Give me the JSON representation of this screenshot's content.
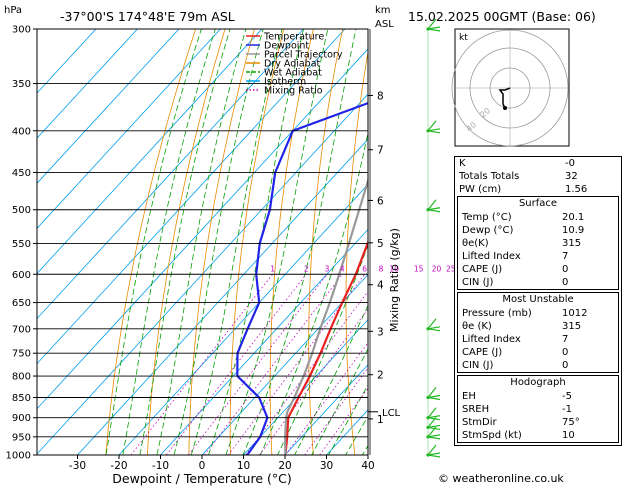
{
  "header": {
    "hpa_label": "hPa",
    "location": "-37°00'S  174°48'E  79m  ASL",
    "km_label": "km",
    "asl_label": "ASL",
    "datetime": "15.02.2025  00GMT  (Base: 06)"
  },
  "legend": {
    "items": [
      {
        "label": "Temperature",
        "color": "#e8201f"
      },
      {
        "label": "Dewpoint",
        "color": "#1f24e8"
      },
      {
        "label": "Parcel Trajectory",
        "color": "#999999"
      },
      {
        "label": "Dry Adiabat",
        "color": "#e88a00"
      },
      {
        "label": "Wet Adiabat",
        "color": "#009f00"
      },
      {
        "label": "Isotherm",
        "color": "#00a0f0"
      },
      {
        "label": "Mixing Ratio",
        "color": "#c000c0"
      }
    ]
  },
  "chart_data": {
    "type": "line",
    "title": "",
    "xlabel": "Dewpoint / Temperature (°C)",
    "ylabel": "Mixing Ratio (g/kg)",
    "x_ticks": [
      -30,
      -20,
      -10,
      0,
      10,
      20,
      30,
      40
    ],
    "p_levels": [
      300,
      350,
      400,
      450,
      500,
      550,
      600,
      650,
      700,
      750,
      800,
      850,
      900,
      950,
      1000
    ],
    "height_ticks_km": [
      {
        "label": "8",
        "p": 362
      },
      {
        "label": "7",
        "p": 422
      },
      {
        "label": "6",
        "p": 487
      },
      {
        "label": "5",
        "p": 549
      },
      {
        "label": "4",
        "p": 618
      },
      {
        "label": "3",
        "p": 705
      },
      {
        "label": "2",
        "p": 797
      },
      {
        "label": "1",
        "p": 903
      }
    ],
    "lcl": {
      "label": "LCL",
      "p": 885
    },
    "mixing_ratio_labels": [
      "1",
      "2",
      "3",
      "4",
      "6",
      "8",
      "10",
      "15",
      "20",
      "25"
    ],
    "mixing_ratio_values": [
      1,
      2,
      3,
      4,
      6,
      8,
      10,
      15,
      20,
      25
    ],
    "series": [
      {
        "name": "Temperature",
        "color": "#e8201f",
        "points": [
          [
            1000,
            20.1
          ],
          [
            950,
            16.5
          ],
          [
            900,
            12.5
          ],
          [
            850,
            10.5
          ],
          [
            800,
            8.5
          ],
          [
            750,
            6.0
          ],
          [
            700,
            3.0
          ],
          [
            650,
            0.0
          ],
          [
            600,
            -3.0
          ],
          [
            550,
            -7.0
          ],
          [
            500,
            -11.0
          ],
          [
            450,
            -16.0
          ],
          [
            400,
            -22.0
          ],
          [
            350,
            -29.0
          ],
          [
            300,
            -37.5
          ]
        ]
      },
      {
        "name": "Dewpoint",
        "color": "#1f24e8",
        "points": [
          [
            1000,
            10.9
          ],
          [
            950,
            10.0
          ],
          [
            900,
            7.5
          ],
          [
            850,
            1.0
          ],
          [
            800,
            -9.0
          ],
          [
            750,
            -14.0
          ],
          [
            700,
            -17.0
          ],
          [
            650,
            -20.0
          ],
          [
            600,
            -27.0
          ],
          [
            550,
            -33.0
          ],
          [
            500,
            -38.0
          ],
          [
            450,
            -45.0
          ],
          [
            400,
            -50.0
          ],
          [
            350,
            -29.5
          ],
          [
            300,
            -39.0
          ]
        ]
      },
      {
        "name": "Parcel Trajectory",
        "color": "#999999",
        "points": [
          [
            1000,
            20.1
          ],
          [
            950,
            16.0
          ],
          [
            900,
            12.0
          ],
          [
            885,
            11.0
          ],
          [
            850,
            9.5
          ],
          [
            800,
            7.0
          ],
          [
            750,
            4.0
          ],
          [
            700,
            0.5
          ],
          [
            650,
            -3.0
          ],
          [
            600,
            -7.0
          ],
          [
            550,
            -11.5
          ],
          [
            500,
            -16.5
          ],
          [
            450,
            -22.0
          ],
          [
            400,
            -28.5
          ],
          [
            350,
            -36.0
          ],
          [
            300,
            -44.5
          ]
        ]
      }
    ],
    "wind_barbs_p": [
      300,
      400,
      500,
      700,
      850,
      900,
      925,
      950,
      1000
    ]
  },
  "hodograph": {
    "unit_label": "kt",
    "ring_labels": [
      "20",
      "40"
    ]
  },
  "indices": {
    "k_label": "K",
    "k_value": "-0",
    "tt_label": "Totals Totals",
    "tt_value": "32",
    "pw_label": "PW (cm)",
    "pw_value": "1.56"
  },
  "surface": {
    "header": "Surface",
    "rows": [
      {
        "label": "Temp (°C)",
        "value": "20.1"
      },
      {
        "label": "Dewp (°C)",
        "value": "10.9"
      },
      {
        "label": "θe(K)",
        "value": "315"
      },
      {
        "label": "Lifted Index",
        "value": "7"
      },
      {
        "label": "CAPE (J)",
        "value": "0"
      },
      {
        "label": "CIN (J)",
        "value": "0"
      }
    ]
  },
  "most_unstable": {
    "header": "Most Unstable",
    "rows": [
      {
        "label": "Pressure (mb)",
        "value": "1012"
      },
      {
        "label": "θe (K)",
        "value": "315"
      },
      {
        "label": "Lifted Index",
        "value": "7"
      },
      {
        "label": "CAPE (J)",
        "value": "0"
      },
      {
        "label": "CIN (J)",
        "value": "0"
      }
    ]
  },
  "hodograph_table": {
    "header": "Hodograph",
    "rows": [
      {
        "label": "EH",
        "value": "-5"
      },
      {
        "label": "SREH",
        "value": "-1"
      },
      {
        "label": "StmDir",
        "value": "75°"
      },
      {
        "label": "StmSpd (kt)",
        "value": "10"
      }
    ]
  },
  "footer": {
    "copyright": "© weatheronline.co.uk"
  }
}
